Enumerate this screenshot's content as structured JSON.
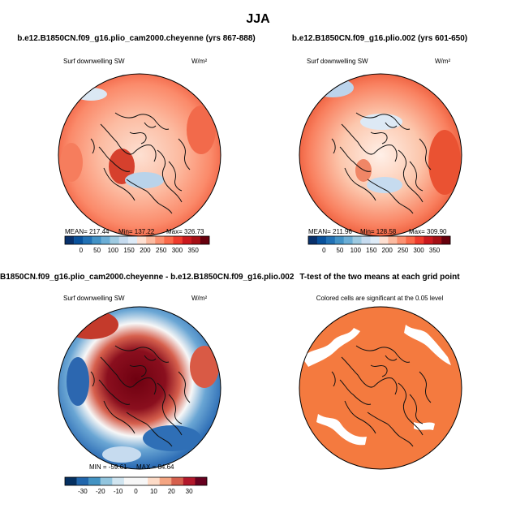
{
  "figure": {
    "title": "JJA"
  },
  "colors": {
    "blue_deep": "#08306b",
    "blue_mid": "#2166ac",
    "blue_light": "#92c5de",
    "white": "#f7f7f7",
    "red_light": "#f4a582",
    "red_mid": "#d6604d",
    "red_deep": "#67001f",
    "signif": "#f47a3f",
    "coast": "#111111"
  },
  "chart_data": [
    {
      "type": "heatmap",
      "id": "p1",
      "title": "b.e12.B1850CN.f09_g16.plio_cam2000.cheyenne (yrs 867-888)",
      "left_label": "Surf downwelling SW",
      "unit_label": "W/m²",
      "stats": {
        "mean": "MEAN= 217.44",
        "min": "Min= 137.22",
        "max": "Max= 326.73"
      },
      "colorbar": {
        "ticks": [
          "0",
          "50",
          "100",
          "150",
          "200",
          "250",
          "300",
          "350"
        ],
        "colors": [
          "#08306b",
          "#08519c",
          "#2171b5",
          "#4292c6",
          "#6baed6",
          "#9ecae1",
          "#c6dbef",
          "#deebf7",
          "#fee0d2",
          "#fcbba1",
          "#fc9272",
          "#fb6a4a",
          "#ef3b2c",
          "#cb181d",
          "#a50f15",
          "#67000d"
        ]
      }
    },
    {
      "type": "heatmap",
      "id": "p2",
      "title": "b.e12.B1850CN.f09_g16.plio.002 (yrs 601-650)",
      "left_label": "Surf downwelling SW",
      "unit_label": "W/m²",
      "stats": {
        "mean": "MEAN= 211.96",
        "min": "Min= 128.58",
        "max": "Max= 309.90"
      },
      "colorbar": {
        "ticks": [
          "0",
          "50",
          "100",
          "150",
          "200",
          "250",
          "300",
          "350"
        ],
        "colors": [
          "#08306b",
          "#08519c",
          "#2171b5",
          "#4292c6",
          "#6baed6",
          "#9ecae1",
          "#c6dbef",
          "#deebf7",
          "#fee0d2",
          "#fcbba1",
          "#fc9272",
          "#fb6a4a",
          "#ef3b2c",
          "#cb181d",
          "#a50f15",
          "#67000d"
        ]
      }
    },
    {
      "type": "heatmap",
      "id": "p3",
      "title": "B1850CN.f09_g16.plio_cam2000.cheyenne - b.e12.B1850CN.f09_g16.plio.002",
      "left_label": "Surf downwelling SW",
      "unit_label": "W/m²",
      "stats": {
        "min": "MIN = -59.61",
        "max": "MAX = 84.64"
      },
      "colorbar": {
        "ticks": [
          "-30",
          "-20",
          "-10",
          "0",
          "10",
          "20",
          "30"
        ],
        "colors": [
          "#053061",
          "#2166ac",
          "#4393c3",
          "#92c5de",
          "#d1e5f0",
          "#f7f7f7",
          "#f7f7f7",
          "#fddbc7",
          "#f4a582",
          "#d6604d",
          "#b2182b",
          "#67001f"
        ]
      }
    },
    {
      "type": "heatmap",
      "id": "p4",
      "title": "T-test of the two means at each grid point",
      "center_label": "Colored cells are significant at the 0.05 level"
    }
  ]
}
